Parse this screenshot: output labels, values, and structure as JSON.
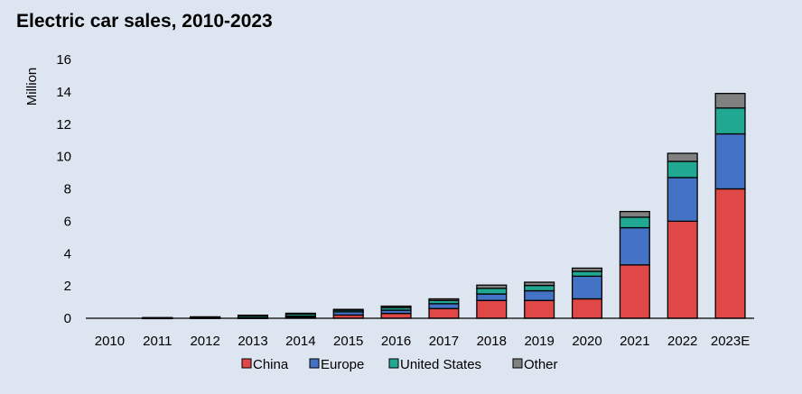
{
  "chart_data": {
    "type": "bar",
    "stacked": true,
    "title": "Electric car sales, 2010-2023",
    "xlabel": "",
    "ylabel": "Million",
    "ylim": [
      0,
      16
    ],
    "yticks": [
      0,
      2,
      4,
      6,
      8,
      10,
      12,
      14,
      16
    ],
    "grid": false,
    "legend_position": "bottom",
    "categories": [
      "2010",
      "2011",
      "2012",
      "2013",
      "2014",
      "2015",
      "2016",
      "2017",
      "2018",
      "2019",
      "2020",
      "2021",
      "2022",
      "2023E"
    ],
    "series": [
      {
        "name": "China",
        "color": "#e04848",
        "values": [
          0.0,
          0.0,
          0.0,
          0.02,
          0.07,
          0.2,
          0.3,
          0.6,
          1.1,
          1.1,
          1.2,
          3.3,
          6.0,
          8.0
        ]
      },
      {
        "name": "Europe",
        "color": "#4472c4",
        "values": [
          0.0,
          0.01,
          0.02,
          0.03,
          0.07,
          0.2,
          0.2,
          0.3,
          0.4,
          0.6,
          1.4,
          2.3,
          2.7,
          3.4
        ]
      },
      {
        "name": "United States",
        "color": "#21a893",
        "values": [
          0.0,
          0.02,
          0.05,
          0.1,
          0.12,
          0.1,
          0.16,
          0.2,
          0.35,
          0.33,
          0.3,
          0.65,
          1.0,
          1.6
        ]
      },
      {
        "name": "Other",
        "color": "#808080",
        "values": [
          0.0,
          0.01,
          0.02,
          0.04,
          0.05,
          0.05,
          0.09,
          0.1,
          0.2,
          0.2,
          0.2,
          0.35,
          0.5,
          0.9
        ]
      }
    ]
  }
}
